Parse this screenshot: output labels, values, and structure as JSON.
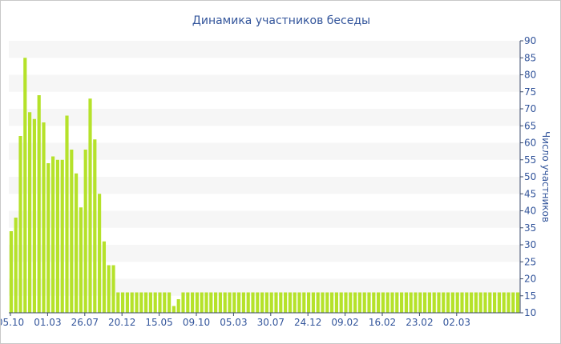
{
  "chart_data": {
    "type": "bar",
    "title": "Динамика участников беседы",
    "xlabel": "",
    "ylabel": "Число участников",
    "ylim": [
      10,
      90
    ],
    "yticks": [
      10,
      15,
      20,
      25,
      30,
      35,
      40,
      45,
      50,
      55,
      60,
      65,
      70,
      75,
      80,
      85,
      90
    ],
    "x_tick_labels": [
      "05.10",
      "01.03",
      "26.07",
      "20.12",
      "15.05",
      "09.10",
      "05.03",
      "30.07",
      "24.12",
      "09.02",
      "16.02",
      "23.02",
      "02.03"
    ],
    "values": [
      34,
      38,
      62,
      85,
      69,
      67,
      74,
      66,
      54,
      56,
      55,
      55,
      68,
      58,
      51,
      41,
      58,
      73,
      61,
      45,
      31,
      24,
      24,
      16,
      16,
      16,
      16,
      16,
      16,
      16,
      16,
      16,
      16,
      16,
      16,
      12,
      14,
      16,
      16,
      16,
      16,
      16,
      16,
      16,
      16,
      16,
      16,
      16,
      16,
      16,
      16,
      16,
      16,
      16,
      16,
      16,
      16,
      16,
      16,
      16,
      16,
      16,
      16,
      16,
      16,
      16,
      16,
      16,
      16,
      16,
      16,
      16,
      16,
      16,
      16,
      16,
      16,
      16,
      16,
      16,
      16,
      16,
      16,
      16,
      16,
      16,
      16,
      16,
      16,
      16,
      16,
      16,
      16,
      16,
      16,
      16,
      16,
      16,
      16,
      16,
      16,
      16,
      16,
      16,
      16,
      16,
      16,
      16,
      16,
      16
    ],
    "bar_color": "#b5e22a",
    "grid_band_color": "#f6f6f6",
    "text_color": "#33559b",
    "axis_position": "right"
  }
}
